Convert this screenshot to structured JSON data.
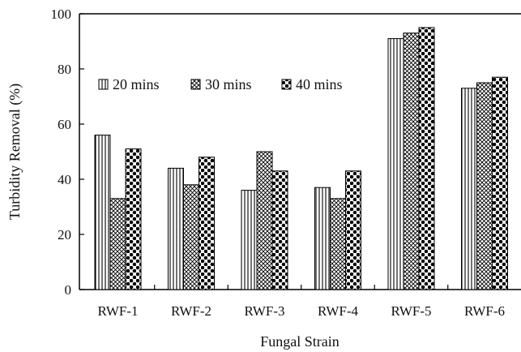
{
  "chart_data": {
    "type": "bar",
    "title": "",
    "xlabel": "Fungal Strain",
    "ylabel": "Turbidity Removal (%)",
    "ylim": [
      0,
      100
    ],
    "yticks": [
      0,
      20,
      40,
      60,
      80,
      100
    ],
    "categories": [
      "RWF-1",
      "RWF-2",
      "RWF-3",
      "RWF-4",
      "RWF-5",
      "RWF-6"
    ],
    "series": [
      {
        "name": "20 mins",
        "pattern": "vertical-stripes",
        "values": [
          56,
          44,
          36,
          37,
          91,
          73
        ]
      },
      {
        "name": "30 mins",
        "pattern": "crosshatch",
        "values": [
          33,
          38,
          50,
          33,
          93,
          75
        ]
      },
      {
        "name": "40 mins",
        "pattern": "dots",
        "values": [
          51,
          48,
          43,
          43,
          95,
          77
        ]
      }
    ],
    "legend_position": "top-left, inside plot area",
    "grid": false,
    "colors": {
      "bar_stroke": "#000000",
      "background": "#ffffff"
    }
  }
}
